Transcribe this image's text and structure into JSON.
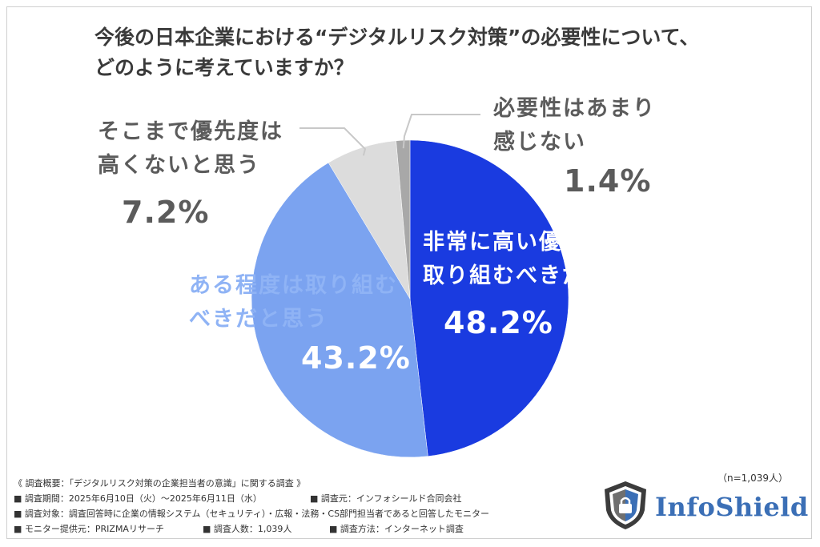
{
  "title_lines": [
    "今後の日本企業における“デジタルリスク対策”の必要性について、",
    "どのように考えていますか？"
  ],
  "chart_data": {
    "type": "pie",
    "title": "今後の日本企業における“デジタルリスク対策”の必要性について、どのように考えていますか？",
    "slices": [
      {
        "label": "非常に高い優先度で取り組むべきだと思う",
        "label_lines": [
          "非常に高い優先度で",
          "取り組むべきだと思う"
        ],
        "value": 48.2,
        "value_text": "48.2%",
        "color": "#1a3be0"
      },
      {
        "label": "ある程度は取り組むべきだと思う",
        "label_lines": [
          "ある程度は取り組む",
          "べきだと思う"
        ],
        "value": 43.2,
        "value_text": "43.2%",
        "color": "#7ba3f0"
      },
      {
        "label": "そこまで優先度は高くないと思う",
        "label_lines": [
          "そこまで優先度は",
          "高くないと思う"
        ],
        "value": 7.2,
        "value_text": "7.2%",
        "color": "#dcdcdc"
      },
      {
        "label": "必要性はあまり感じない",
        "label_lines": [
          "必要性はあまり",
          "感じない"
        ],
        "value": 1.4,
        "value_text": "1.4%",
        "color": "#a8a8a8"
      }
    ],
    "start": "12 o'clock",
    "direction": "clockwise",
    "leader_line_color": "#c8c8c8"
  },
  "sample_size": "（n=1,039人）",
  "footnotes": {
    "heading": "《 調査概要：「デジタルリスク対策の企業担当者の意識」に関する調査 》",
    "row1": [
      "■ 調査期間：2025年6月10日（火）〜2025年6月11日（水）",
      "■ 調査元：インフォシールド合同会社"
    ],
    "row2": [
      "■ 調査対象：調査回答時に企業の情報システム（セキュリティ）・広報・法務・CS部門担当者であると回答したモニター"
    ],
    "row3": [
      "■ モニター提供元：PRIZMAリサーチ",
      "■ 調査人数：1,039人",
      "■ 調査方法：インターネット調査"
    ]
  },
  "logo": {
    "text": "InfoShield",
    "icon": "shield-lock-icon",
    "colors": {
      "dark": "#3c3c3c",
      "blue": "#3b6fb6"
    }
  }
}
